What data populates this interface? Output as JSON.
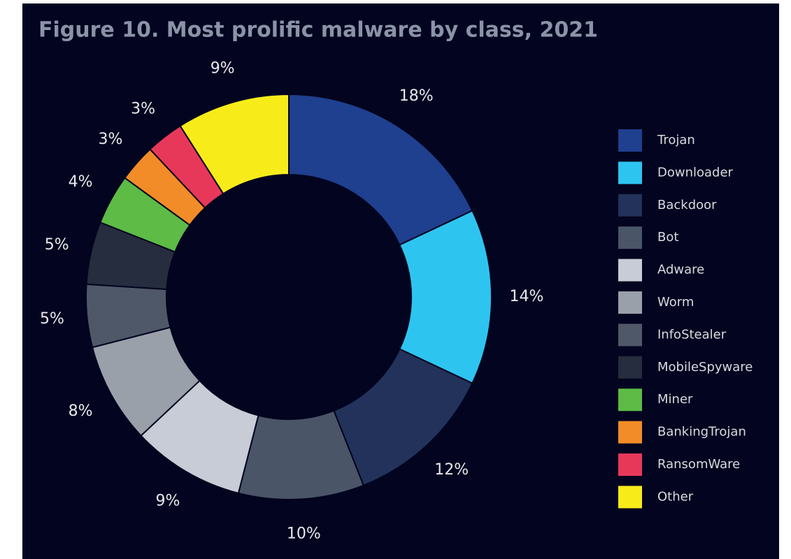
{
  "chart_data": {
    "type": "donut",
    "title": "Figure 10. Most prolific malware by class, 2021",
    "categories": [
      "Trojan",
      "Downloader",
      "Backdoor",
      "Bot",
      "Adware",
      "Worm",
      "InfoStealer",
      "MobileSpyware",
      "Miner",
      "BankingTrojan",
      "RansomWare",
      "Other"
    ],
    "values": [
      18,
      14,
      12,
      10,
      9,
      8,
      5,
      5,
      4,
      3,
      3,
      9
    ],
    "value_labels": [
      "18%",
      "14%",
      "12%",
      "10%",
      "9%",
      "8%",
      "5%",
      "5%",
      "4%",
      "3%",
      "3%",
      "9%"
    ],
    "colors": [
      "#1f3f8f",
      "#2ec4f0",
      "#22325a",
      "#4a5568",
      "#c8ccd6",
      "#9aa0aa",
      "#4f5868",
      "#262d3e",
      "#5dbb46",
      "#f28c28",
      "#e8385a",
      "#f7ec1a"
    ],
    "legend": "right"
  }
}
